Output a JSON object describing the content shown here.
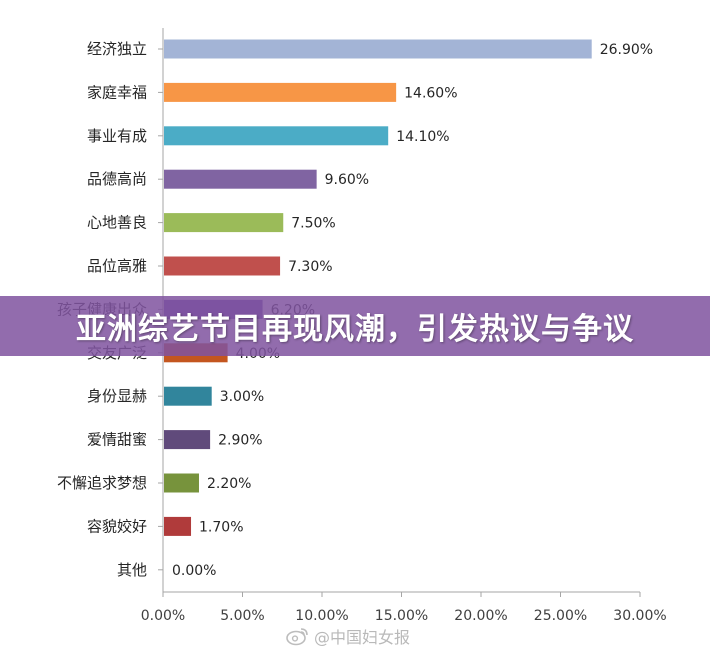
{
  "banner": {
    "text": "亚洲综艺节目再现风潮，引发热议与争议"
  },
  "watermark": {
    "text": "@中国妇女报",
    "icon": "weibo-icon"
  },
  "chart_data": {
    "type": "bar",
    "orientation": "horizontal",
    "categories": [
      "经济独立",
      "家庭幸福",
      "事业有成",
      "品德高尚",
      "心地善良",
      "品位高雅",
      "孩子健康出众",
      "交友广泛",
      "身份显赫",
      "爱情甜蜜",
      "不懈追求梦想",
      "容貌姣好",
      "其他"
    ],
    "values": [
      26.9,
      14.6,
      14.1,
      9.6,
      7.5,
      7.3,
      6.2,
      4.0,
      3.0,
      2.9,
      2.2,
      1.7,
      0.0
    ],
    "data_labels": [
      "26.90%",
      "14.60%",
      "14.10%",
      "9.60%",
      "7.50%",
      "7.30%",
      "6.20%",
      "4.00%",
      "3.00%",
      "2.90%",
      "2.20%",
      "1.70%",
      "0.00%"
    ],
    "colors": [
      "#a3b4d6",
      "#f79646",
      "#4bacc6",
      "#8064a2",
      "#9bbb59",
      "#c0504d",
      "#6b50a8",
      "#c4561f",
      "#31859c",
      "#604a7b",
      "#77933c",
      "#b03b3b",
      "#4f81bd"
    ],
    "xlim": [
      0,
      30
    ],
    "xticks": [
      0,
      5,
      10,
      15,
      20,
      25,
      30
    ],
    "xtick_labels": [
      "0.00%",
      "5.00%",
      "10.00%",
      "15.00%",
      "20.00%",
      "25.00%",
      "30.00%"
    ],
    "title": "",
    "xlabel": "",
    "ylabel": "",
    "grid": false,
    "legend": "none"
  }
}
